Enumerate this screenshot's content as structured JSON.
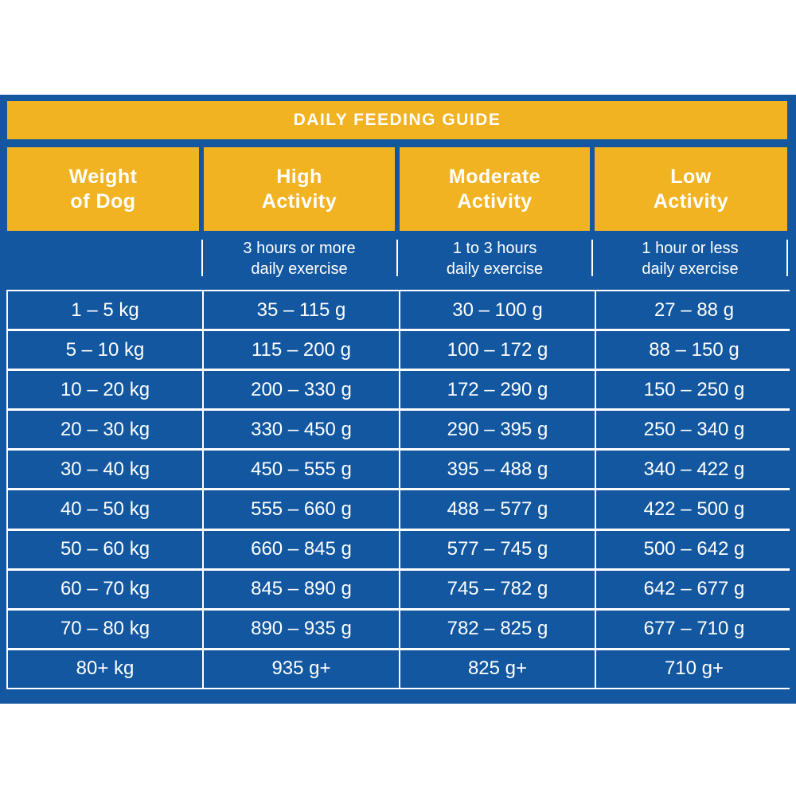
{
  "title": "DAILY FEEDING GUIDE",
  "headers": [
    {
      "line1": "Weight",
      "line2": "of Dog"
    },
    {
      "line1": "High",
      "line2": "Activity"
    },
    {
      "line1": "Moderate",
      "line2": "Activity"
    },
    {
      "line1": "Low",
      "line2": "Activity"
    }
  ],
  "subheaders": [
    {
      "line1": "3 hours or more",
      "line2": "daily exercise"
    },
    {
      "line1": "1 to 3 hours",
      "line2": "daily exercise"
    },
    {
      "line1": "1 hour or less",
      "line2": "daily exercise"
    }
  ],
  "rows": [
    [
      "1 – 5 kg",
      "35 – 115 g",
      "30 – 100 g",
      "27 – 88 g"
    ],
    [
      "5 – 10 kg",
      "115 – 200 g",
      "100 – 172 g",
      "88 – 150 g"
    ],
    [
      "10 – 20 kg",
      "200 – 330 g",
      "172 – 290 g",
      "150 – 250 g"
    ],
    [
      "20 – 30 kg",
      "330 – 450 g",
      "290 – 395 g",
      "250 – 340 g"
    ],
    [
      "30 – 40 kg",
      "450 – 555 g",
      "395 – 488 g",
      "340 – 422 g"
    ],
    [
      "40 – 50 kg",
      "555 – 660 g",
      "488 – 577 g",
      "422 – 500 g"
    ],
    [
      "50 – 60 kg",
      "660 – 845 g",
      "577 – 745 g",
      "500 – 642 g"
    ],
    [
      "60 – 70 kg",
      "845 – 890 g",
      "745 – 782 g",
      "642 – 677 g"
    ],
    [
      "70 – 80 kg",
      "890 – 935 g",
      "782 – 825 g",
      "677 – 710 g"
    ],
    [
      "80+ kg",
      "935 g+",
      "825 g+",
      "710 g+"
    ]
  ],
  "colors": {
    "blue": "#1257a0",
    "gold": "#f2b323",
    "white": "#ffffff"
  }
}
